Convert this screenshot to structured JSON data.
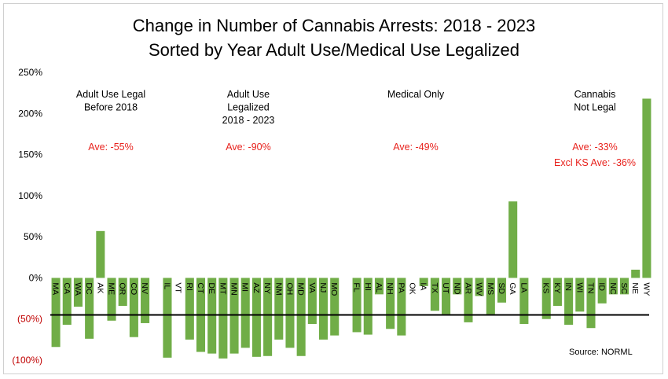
{
  "title": "Change in Number of Cannabis Arrests: 2018 - 2023",
  "subtitle": "Sorted by Year Adult Use/Medical Use Legalized",
  "chart_data": {
    "type": "bar",
    "title": "Change in Number of Cannabis Arrests: 2018 - 2023",
    "subtitle": "Sorted by Year Adult Use/Medical Use Legalized",
    "ylim": [
      -100,
      250
    ],
    "yticks": [
      250,
      200,
      150,
      100,
      50,
      0,
      -50,
      -100
    ],
    "ytick_labels": [
      "250%",
      "200%",
      "150%",
      "100%",
      "50%",
      "0%",
      "(50%)",
      "(100%)"
    ],
    "grid": false,
    "reference_line": -45,
    "bar_color": "#70ad47",
    "negative_tick_color": "#c00000",
    "annotation_color": "#e8231e",
    "categories": [
      "MA",
      "CA",
      "WA",
      "DC",
      "AK",
      "ME",
      "OR",
      "CO",
      "NV",
      "",
      "IL",
      "VT",
      "RI",
      "CT",
      "DE",
      "MT",
      "MN",
      "MI",
      "AZ",
      "NY",
      "NM",
      "OH",
      "MD",
      "VA",
      "NJ",
      "MO",
      "",
      "FL",
      "HI",
      "AL",
      "NH",
      "PA",
      "OK",
      "IA",
      "TX",
      "UT",
      "ND",
      "AR",
      "WV",
      "MS",
      "SD",
      "GA",
      "LA",
      "",
      "KS",
      "KY",
      "IN",
      "WI",
      "TN",
      "ID",
      "NC",
      "SC",
      "NE",
      "WY"
    ],
    "values": [
      -84,
      -57,
      -35,
      -74,
      57,
      -52,
      -34,
      -72,
      -55,
      null,
      -97,
      0,
      -75,
      -90,
      -92,
      -98,
      -92,
      -85,
      -96,
      -95,
      -75,
      -85,
      -95,
      -56,
      -75,
      -70,
      null,
      -66,
      -69,
      -20,
      -62,
      -70,
      0,
      -10,
      -40,
      -44,
      -20,
      -54,
      -22,
      -44,
      -30,
      93,
      -56,
      null,
      -50,
      -34,
      -57,
      -41,
      -61,
      -31,
      -20,
      -20,
      10,
      218
    ],
    "groups": [
      {
        "label": [
          "Adult Use Legal",
          "Before 2018"
        ],
        "average": "Ave: -55%"
      },
      {
        "label": [
          "Adult Use",
          "Legalized",
          "2018 - 2023"
        ],
        "average": "Ave: -90%"
      },
      {
        "label": [
          "Medical Only"
        ],
        "average": "Ave: -49%"
      },
      {
        "label": [
          "Cannabis",
          "Not Legal"
        ],
        "average": "Ave: -33%",
        "note": "Excl KS Ave: -36%"
      }
    ],
    "source": "Source: NORML"
  }
}
